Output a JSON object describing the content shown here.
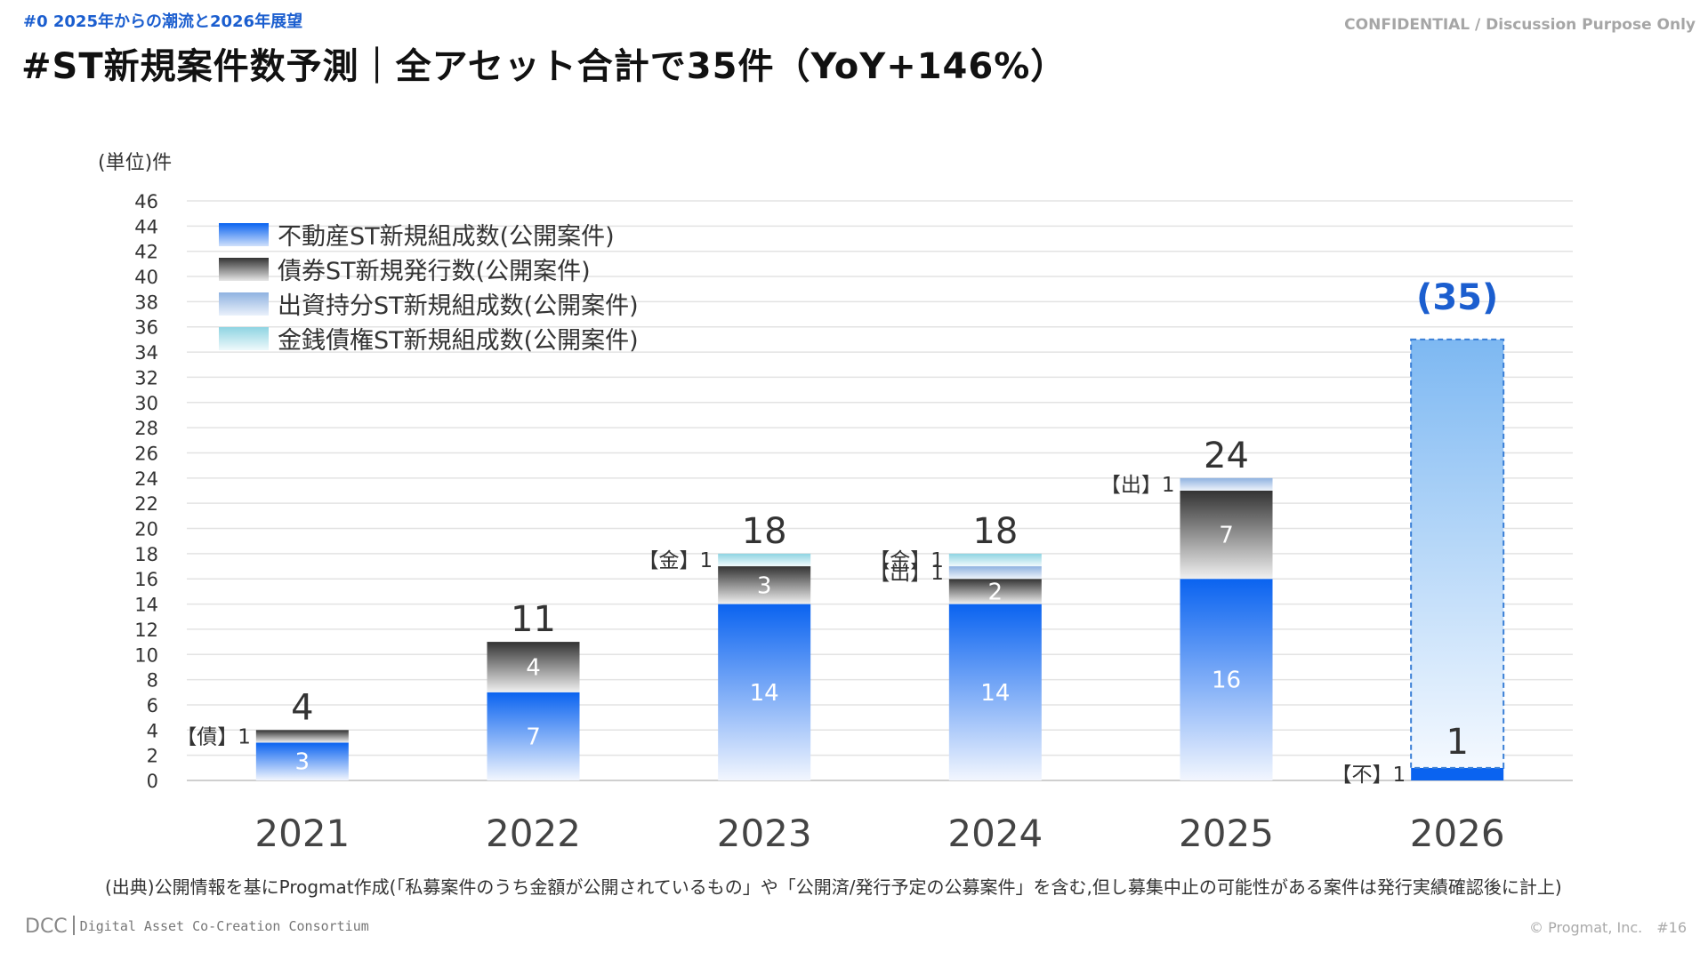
{
  "header": {
    "section_label": "#0  2025年からの潮流と2026年展望",
    "confidential": "CONFIDENTIAL / Discussion Purpose Only",
    "title": "#ST新規案件数予測｜全アセット合計で35件（YoY+146%）"
  },
  "footer": {
    "source_note": "(出典)公開情報を基にProgmat作成(「私募案件のうち金額が公開されているもの」や「公開済/発行予定の公募案件」を含む,但し募集中止の可能性がある案件は発行実績確認後に計上)",
    "logo_short": "DCC",
    "logo_org": "Digital Asset Co-Creation Consortium",
    "copyright": "© Progmat, Inc.",
    "page_number": "#16"
  },
  "colors": {
    "real_estate": "#0a63f0",
    "bond": "#333333",
    "equity": "#8fb2e0",
    "monetary": "#8fd4e2",
    "forecast": "#7db8f2",
    "accent": "#1b5ecf"
  },
  "chart_data": {
    "type": "bar",
    "stacked": true,
    "unit_label": "(単位)件",
    "categories": [
      "2021",
      "2022",
      "2023",
      "2024",
      "2025",
      "2026"
    ],
    "series": [
      {
        "name": "不動産ST新規組成数(公開案件)",
        "key": "real_estate",
        "values": [
          3,
          7,
          14,
          14,
          16,
          1
        ]
      },
      {
        "name": "債券ST新規発行数(公開案件)",
        "key": "bond",
        "values": [
          1,
          4,
          3,
          2,
          7,
          0
        ]
      },
      {
        "name": "出資持分ST新規組成数(公開案件)",
        "key": "equity",
        "values": [
          0,
          0,
          0,
          1,
          1,
          0
        ]
      },
      {
        "name": "金銭債権ST新規組成数(公開案件)",
        "key": "monetary",
        "values": [
          0,
          0,
          1,
          1,
          0,
          0
        ]
      }
    ],
    "totals": [
      "4",
      "11",
      "18",
      "18",
      "24",
      "1"
    ],
    "forecast": {
      "category": "2026",
      "value": 35,
      "label": "(35)"
    },
    "side_labels": [
      {
        "category": "2021",
        "series": "bond",
        "text": "【債】1"
      },
      {
        "category": "2023",
        "series": "monetary",
        "text": "【金】1"
      },
      {
        "category": "2024",
        "series": "monetary",
        "text": "【金】1"
      },
      {
        "category": "2024",
        "series": "equity",
        "text": "【出】1"
      },
      {
        "category": "2025",
        "series": "equity",
        "text": "【出】1"
      },
      {
        "category": "2026",
        "series": "real_estate",
        "text": "【不】1"
      }
    ],
    "ylim": [
      0,
      46
    ],
    "yticks": [
      0,
      2,
      4,
      6,
      8,
      10,
      12,
      14,
      16,
      18,
      20,
      22,
      24,
      26,
      28,
      30,
      32,
      34,
      36,
      38,
      40,
      42,
      44,
      46
    ],
    "grid": true,
    "legend_position": "top-left"
  }
}
